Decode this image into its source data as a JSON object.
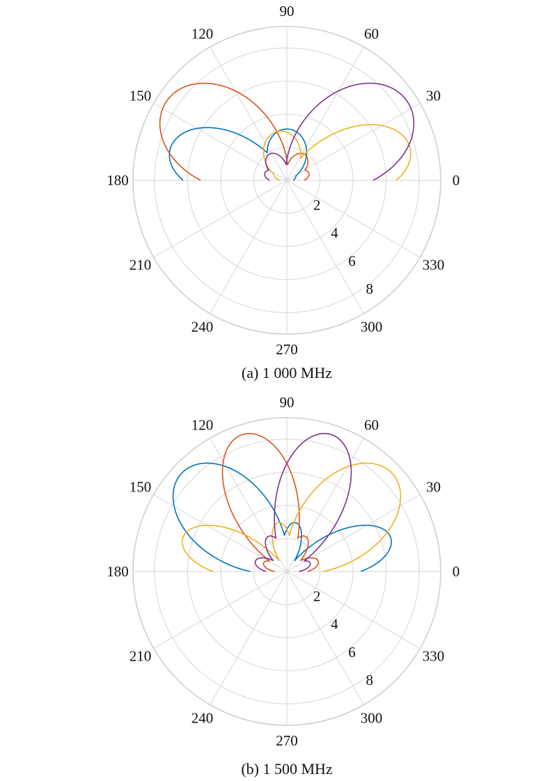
{
  "colors": [
    "#0072BD",
    "#D95319",
    "#EDB120",
    "#7E2F8E"
  ],
  "chart_data": [
    {
      "type": "polar",
      "caption": "(a) 1 000 MHz",
      "angle_ticks": [
        0,
        30,
        60,
        90,
        120,
        150,
        180,
        210,
        240,
        270,
        300,
        330
      ],
      "radius_ticks": [
        2,
        4,
        6,
        8
      ],
      "rlim": [
        0,
        9.3
      ],
      "grid": true,
      "series": [
        {
          "color": "#0072BD",
          "lobes": [
            {
              "center_deg": 90,
              "peak": 3.1,
              "beamwidth_deg": 50
            },
            {
              "center_deg": 165,
              "peak": 7.3,
              "beamwidth_deg": 34
            },
            {
              "center_deg": 30,
              "peak": 0.6,
              "beamwidth_deg": 40
            }
          ]
        },
        {
          "color": "#D95319",
          "lobes": [
            {
              "center_deg": 147,
              "peak": 8.7,
              "beamwidth_deg": 42
            },
            {
              "center_deg": 55,
              "peak": 1.9,
              "beamwidth_deg": 36
            },
            {
              "center_deg": 18,
              "peak": 1.4,
              "beamwidth_deg": 30
            }
          ]
        },
        {
          "color": "#EDB120",
          "lobes": [
            {
              "center_deg": 15,
              "peak": 7.7,
              "beamwidth_deg": 34
            },
            {
              "center_deg": 100,
              "peak": 3.0,
              "beamwidth_deg": 48
            },
            {
              "center_deg": 140,
              "peak": 1.0,
              "beamwidth_deg": 40
            }
          ]
        },
        {
          "color": "#7E2F8E",
          "lobes": [
            {
              "center_deg": 33,
              "peak": 8.7,
              "beamwidth_deg": 42
            },
            {
              "center_deg": 125,
              "peak": 1.9,
              "beamwidth_deg": 36
            },
            {
              "center_deg": 162,
              "peak": 1.4,
              "beamwidth_deg": 30
            }
          ]
        }
      ]
    },
    {
      "type": "polar",
      "caption": "(b) 1 500 MHz",
      "angle_ticks": [
        0,
        30,
        60,
        90,
        120,
        150,
        180,
        210,
        240,
        270,
        300,
        330
      ],
      "radius_ticks": [
        2,
        4,
        6,
        8
      ],
      "rlim": [
        0,
        9.3
      ],
      "grid": true,
      "series": [
        {
          "color": "#0072BD",
          "lobes": [
            {
              "center_deg": 137,
              "peak": 8.7,
              "beamwidth_deg": 36
            },
            {
              "center_deg": 18,
              "peak": 6.6,
              "beamwidth_deg": 26
            },
            {
              "center_deg": 80,
              "peak": 3.0,
              "beamwidth_deg": 22
            },
            {
              "center_deg": 160,
              "peak": 1.9,
              "beamwidth_deg": 22
            }
          ]
        },
        {
          "color": "#D95319",
          "lobes": [
            {
              "center_deg": 108,
              "peak": 8.7,
              "beamwidth_deg": 30
            },
            {
              "center_deg": 62,
              "peak": 2.4,
              "beamwidth_deg": 24
            },
            {
              "center_deg": 18,
              "peak": 2.0,
              "beamwidth_deg": 24
            },
            {
              "center_deg": 160,
              "peak": 1.5,
              "beamwidth_deg": 22
            }
          ]
        },
        {
          "color": "#EDB120",
          "lobes": [
            {
              "center_deg": 43,
              "peak": 8.7,
              "beamwidth_deg": 36
            },
            {
              "center_deg": 162,
              "peak": 6.6,
              "beamwidth_deg": 26
            },
            {
              "center_deg": 100,
              "peak": 3.0,
              "beamwidth_deg": 22
            },
            {
              "center_deg": 20,
              "peak": 1.9,
              "beamwidth_deg": 22
            }
          ]
        },
        {
          "color": "#7E2F8E",
          "lobes": [
            {
              "center_deg": 72,
              "peak": 8.7,
              "beamwidth_deg": 30
            },
            {
              "center_deg": 118,
              "peak": 2.4,
              "beamwidth_deg": 24
            },
            {
              "center_deg": 162,
              "peak": 2.0,
              "beamwidth_deg": 24
            },
            {
              "center_deg": 20,
              "peak": 1.5,
              "beamwidth_deg": 22
            }
          ]
        }
      ]
    }
  ]
}
